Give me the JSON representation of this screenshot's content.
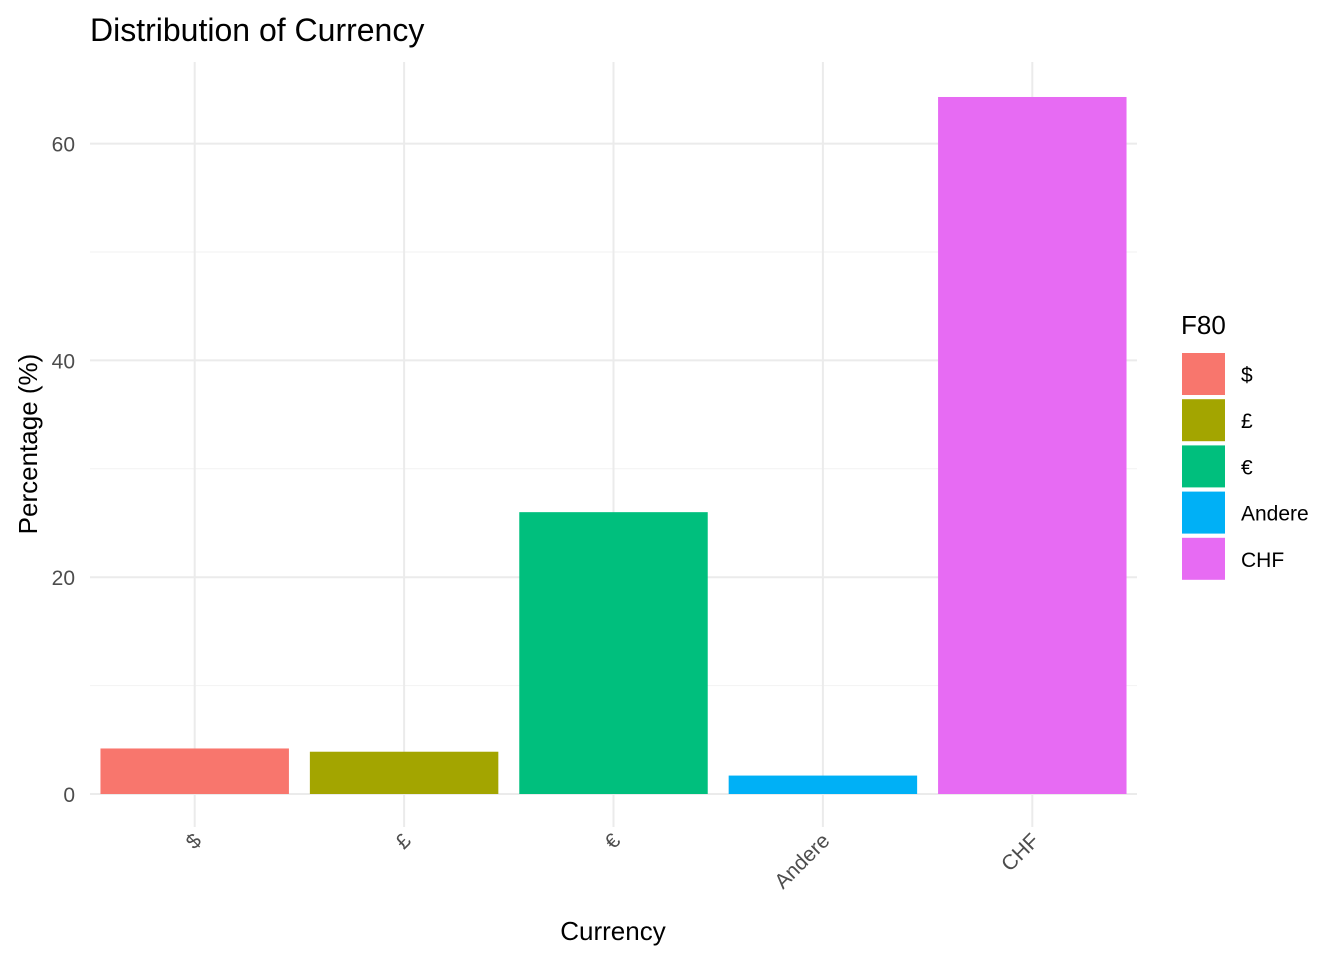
{
  "chart_data": {
    "type": "bar",
    "title": "Distribution of Currency",
    "xlabel": "Currency",
    "ylabel": "Percentage (%)",
    "categories": [
      "$",
      "£",
      "€",
      "Andere",
      "CHF"
    ],
    "values": [
      4.2,
      3.9,
      26.0,
      1.7,
      64.3
    ],
    "colors": [
      "#F8766D",
      "#A3A500",
      "#00BF7D",
      "#00B0F6",
      "#E76BF3"
    ],
    "ylim": [
      0,
      67.5
    ],
    "yticks": [
      0,
      20,
      40,
      60
    ],
    "grid": true,
    "legend": {
      "title": "F80",
      "position": "right",
      "entries": [
        "$",
        "£",
        "€",
        "Andere",
        "CHF"
      ]
    }
  }
}
